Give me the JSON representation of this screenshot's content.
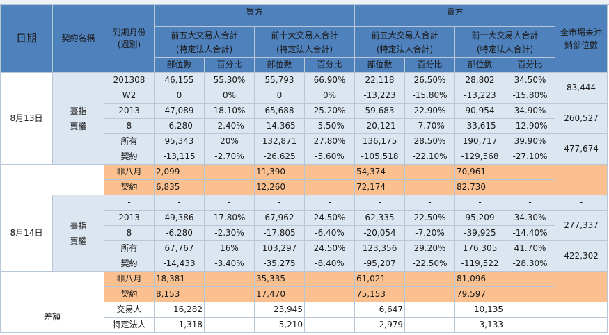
{
  "header": {
    "date_label": "日期",
    "contract_label": "契約名稱",
    "expiry_label": "到期月份\n(週別)",
    "buy_label": "買方",
    "sell_label": "賣方",
    "top5_label": "前五大交易人合計\n(特定法人合計)",
    "top10_label": "前十大交易人合計\n(特定法人合計)",
    "position_label": "部位數",
    "percent_label": "百分比",
    "market_oi_label": "全市場未沖\n銷部位數"
  },
  "blocks": [
    {
      "date": "8月13日",
      "groups": [
        {
          "contract": "臺指\n賣權",
          "expiry": [
            "201308",
            "W2"
          ],
          "values": [
            [
              "46,155",
              "0"
            ],
            [
              "55.30%",
              "0%"
            ],
            [
              "55,793",
              "0"
            ],
            [
              "66.90%",
              "0%"
            ],
            [
              "22,118",
              "-13,223"
            ],
            [
              "26.50%",
              "-15.80%"
            ],
            [
              "28,802",
              "-13,223"
            ],
            [
              "34.50%",
              "-15.80%"
            ]
          ],
          "oi": "83,444"
        },
        {
          "contract": "",
          "expiry": [
            "2013",
            "8"
          ],
          "values": [
            [
              "47,089",
              "-6,280"
            ],
            [
              "18.10%",
              "-2.40%"
            ],
            [
              "65,688",
              "-14,365"
            ],
            [
              "25.20%",
              "-5.50%"
            ],
            [
              "59,683",
              "-20,121"
            ],
            [
              "22.90%",
              "-7.70%"
            ],
            [
              "90,954",
              "-33,615"
            ],
            [
              "34.90%",
              "-12.90%"
            ]
          ],
          "oi": "260,527"
        },
        {
          "contract": "",
          "expiry": [
            "所有",
            "契約"
          ],
          "values": [
            [
              "95,343",
              "-13,115"
            ],
            [
              "20%",
              "-2.70%"
            ],
            [
              "132,871",
              "-26,625"
            ],
            [
              "27.80%",
              "-5.60%"
            ],
            [
              "136,175",
              "-105,518"
            ],
            [
              "28.50%",
              "-22.10%"
            ],
            [
              "190,717",
              "-129,568"
            ],
            [
              "39.90%",
              "-27.10%"
            ]
          ],
          "oi": "477,674"
        }
      ],
      "non_aug": {
        "label": [
          "非八月",
          "契約"
        ],
        "values": [
          [
            "2,099",
            "6,835"
          ],
          [
            "",
            ""
          ],
          [
            "11,390",
            "12,260"
          ],
          [
            "",
            ""
          ],
          [
            "54,374",
            "72,174"
          ],
          [
            "",
            ""
          ],
          [
            "70,961",
            "82,730"
          ],
          [
            "",
            ""
          ]
        ]
      }
    },
    {
      "date": "8月14日",
      "groups": [
        {
          "contract": "臺指\n賣權",
          "expiry": [
            "-",
            ""
          ],
          "values": [
            [
              "-",
              ""
            ],
            [
              "-",
              ""
            ],
            [
              "-",
              ""
            ],
            [
              "-",
              ""
            ],
            [
              "-",
              ""
            ],
            [
              "-",
              ""
            ],
            [
              "-",
              ""
            ],
            [
              "-",
              ""
            ]
          ],
          "oi": "-",
          "single_row": true
        },
        {
          "contract": "",
          "expiry": [
            "2013",
            "8"
          ],
          "values": [
            [
              "49,386",
              "-6,280"
            ],
            [
              "17.80%",
              "-2.30%"
            ],
            [
              "67,962",
              "-17,805"
            ],
            [
              "24.50%",
              "-6.40%"
            ],
            [
              "62,335",
              "-20,054"
            ],
            [
              "22.50%",
              "-7.20%"
            ],
            [
              "95,209",
              "-39,925"
            ],
            [
              "34.30%",
              "-14.40%"
            ]
          ],
          "oi": "277,337"
        },
        {
          "contract": "",
          "expiry": [
            "所有",
            "契約"
          ],
          "values": [
            [
              "67,767",
              "-14,433"
            ],
            [
              "16%",
              "-3.40%"
            ],
            [
              "103,297",
              "-35,275"
            ],
            [
              "24.50%",
              "-8.40%"
            ],
            [
              "123,356",
              "-95,207"
            ],
            [
              "29.20%",
              "-22.50%"
            ],
            [
              "176,305",
              "-119,522"
            ],
            [
              "41.70%",
              "-28.30%"
            ]
          ],
          "oi": "422,302"
        }
      ],
      "non_aug": {
        "label": [
          "非八月",
          "契約"
        ],
        "values": [
          [
            "18,381",
            "8,153"
          ],
          [
            "",
            ""
          ],
          [
            "35,335",
            "17,470"
          ],
          [
            "",
            ""
          ],
          [
            "61,021",
            "75,153"
          ],
          [
            "",
            ""
          ],
          [
            "81,096",
            "79,597"
          ],
          [
            "",
            ""
          ]
        ]
      }
    }
  ],
  "diff": {
    "label": "差額",
    "rows": [
      {
        "label": "交易人",
        "values": [
          "16,282",
          "",
          "23,945",
          "",
          "6,647",
          "",
          "10,135",
          ""
        ]
      },
      {
        "label": "特定法人",
        "values": [
          "1,318",
          "",
          "5,210",
          "",
          "2,979",
          "",
          "-3,133",
          ""
        ]
      }
    ]
  }
}
